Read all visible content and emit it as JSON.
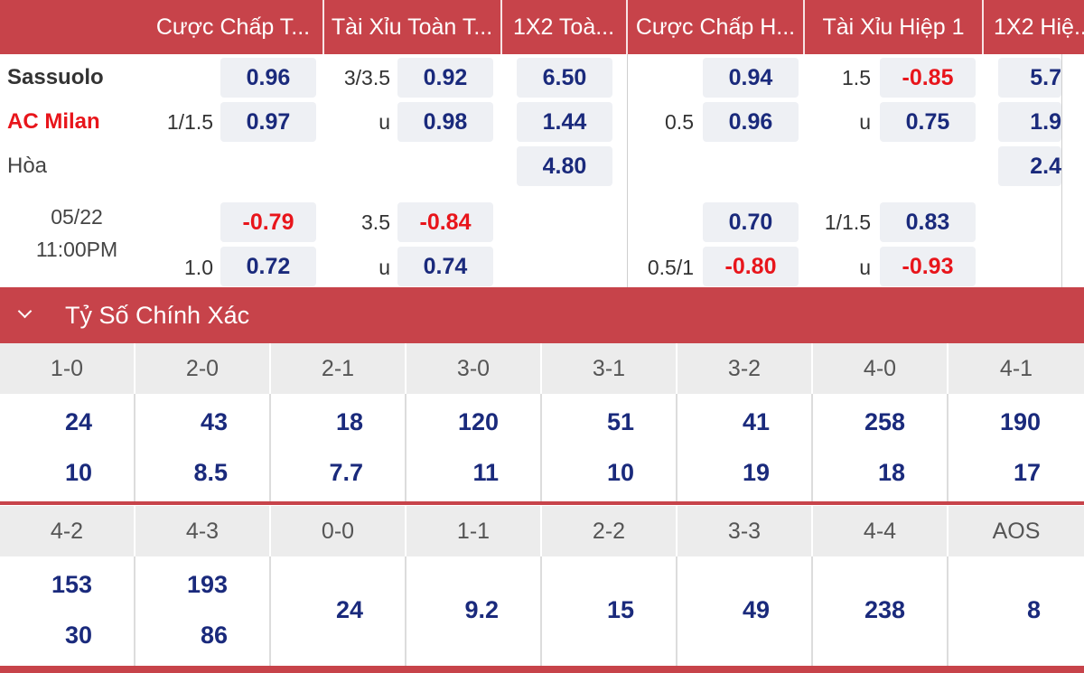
{
  "header": {
    "cols": [
      "Cược Chấp T...",
      "Tài Xỉu Toàn T...",
      "1X2 Toà...",
      "Cược Chấp H...",
      "Tài Xỉu Hiệp 1",
      "1X2 Hiệ..."
    ]
  },
  "teams": {
    "home": "Sassuolo",
    "away": "AC Milan",
    "draw": "Hòa"
  },
  "match_time": {
    "date": "05/22",
    "time": "11:00PM"
  },
  "odds": {
    "ah_full": {
      "line": "1/1.5",
      "home": "0.96",
      "away": "0.97"
    },
    "ou_full": {
      "line": "3/3.5",
      "over": "0.92",
      "u": "u",
      "under": "0.98"
    },
    "x12_full": {
      "home": "6.50",
      "away": "1.44",
      "draw": "4.80"
    },
    "ah_half": {
      "line": "0.5",
      "home": "0.94",
      "away": "0.96"
    },
    "ou_half": {
      "line": "1.5",
      "over": "-0.85",
      "u": "u",
      "under": "0.75"
    },
    "x12_half": {
      "home": "5.7",
      "away": "1.9",
      "draw": "2.4"
    },
    "alt_ah_full": {
      "line": "1.0",
      "top": "-0.79",
      "bottom": "0.72"
    },
    "alt_ou_full": {
      "line": "3.5",
      "over": "-0.84",
      "u": "u",
      "under": "0.74"
    },
    "alt_ah_half": {
      "line": "0.5/1",
      "top": "0.70",
      "bottom": "-0.80"
    },
    "alt_ou_half": {
      "line": "1/1.5",
      "over": "0.83",
      "u": "u",
      "under": "-0.93"
    }
  },
  "correct_score": {
    "title": "Tỷ Số Chính Xác",
    "row1": {
      "scores": [
        "1-0",
        "2-0",
        "2-1",
        "3-0",
        "3-1",
        "3-2",
        "4-0",
        "4-1"
      ],
      "home": [
        "24",
        "43",
        "18",
        "120",
        "51",
        "41",
        "258",
        "190"
      ],
      "away": [
        "10",
        "8.5",
        "7.7",
        "11",
        "10",
        "19",
        "18",
        "17"
      ]
    },
    "row2": {
      "scores": [
        "4-2",
        "4-3",
        "0-0",
        "1-1",
        "2-2",
        "3-3",
        "4-4",
        "AOS"
      ],
      "home": [
        "153",
        "193"
      ],
      "away": [
        "30",
        "86"
      ],
      "single": [
        "24",
        "9.2",
        "15",
        "49",
        "238",
        "8"
      ]
    }
  }
}
